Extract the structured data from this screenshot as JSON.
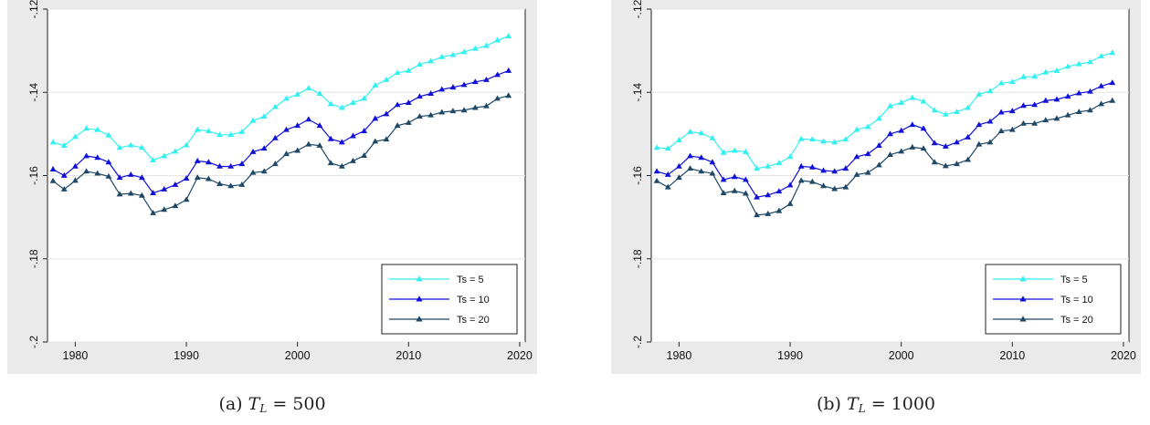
{
  "chart_data": [
    {
      "type": "line",
      "caption_prefix": "(a) ",
      "caption_var": "T",
      "caption_sub": "L",
      "caption_rest": " = 500",
      "x": [
        1978,
        1979,
        1980,
        1981,
        1982,
        1983,
        1984,
        1985,
        1986,
        1987,
        1988,
        1989,
        1990,
        1991,
        1992,
        1993,
        1994,
        1995,
        1996,
        1997,
        1998,
        1999,
        2000,
        2001,
        2002,
        2003,
        2004,
        2005,
        2006,
        2007,
        2008,
        2009,
        2010,
        2011,
        2012,
        2013,
        2014,
        2015,
        2016,
        2017,
        2018,
        2019
      ],
      "series": [
        {
          "name": "Ts = 5",
          "color": "#33f0f0",
          "values": [
            -0.152,
            -0.1528,
            -0.1507,
            -0.1487,
            -0.149,
            -0.1503,
            -0.1533,
            -0.1527,
            -0.1533,
            -0.1563,
            -0.1553,
            -0.1542,
            -0.1527,
            -0.149,
            -0.1493,
            -0.1502,
            -0.1502,
            -0.1495,
            -0.1468,
            -0.1458,
            -0.1435,
            -0.1415,
            -0.1405,
            -0.139,
            -0.1403,
            -0.1428,
            -0.1437,
            -0.1425,
            -0.1415,
            -0.1383,
            -0.137,
            -0.1353,
            -0.1348,
            -0.1333,
            -0.1325,
            -0.1315,
            -0.131,
            -0.1303,
            -0.1295,
            -0.1288,
            -0.1275,
            -0.1265
          ]
        },
        {
          "name": "Ts = 10",
          "color": "#1010d8",
          "values": [
            -0.1585,
            -0.16,
            -0.1578,
            -0.1553,
            -0.1557,
            -0.1568,
            -0.1605,
            -0.1598,
            -0.1605,
            -0.1642,
            -0.1633,
            -0.1622,
            -0.1607,
            -0.1565,
            -0.1568,
            -0.1578,
            -0.1578,
            -0.1572,
            -0.1543,
            -0.1535,
            -0.151,
            -0.149,
            -0.148,
            -0.1465,
            -0.148,
            -0.1512,
            -0.152,
            -0.1505,
            -0.1493,
            -0.1463,
            -0.1452,
            -0.143,
            -0.1425,
            -0.141,
            -0.1403,
            -0.1393,
            -0.1388,
            -0.1382,
            -0.1375,
            -0.137,
            -0.1358,
            -0.1348
          ]
        },
        {
          "name": "Ts = 20",
          "color": "#1f4866",
          "values": [
            -0.1613,
            -0.1633,
            -0.1612,
            -0.159,
            -0.1595,
            -0.1602,
            -0.1645,
            -0.1643,
            -0.1648,
            -0.169,
            -0.1682,
            -0.1673,
            -0.1658,
            -0.1605,
            -0.1608,
            -0.162,
            -0.1625,
            -0.1622,
            -0.1593,
            -0.159,
            -0.1572,
            -0.1548,
            -0.154,
            -0.1525,
            -0.1528,
            -0.157,
            -0.1578,
            -0.1565,
            -0.1552,
            -0.1518,
            -0.1513,
            -0.148,
            -0.1473,
            -0.1458,
            -0.1455,
            -0.1448,
            -0.1445,
            -0.1443,
            -0.1437,
            -0.1433,
            -0.1415,
            -0.1408
          ]
        }
      ],
      "xticks": [
        "1980",
        "1990",
        "2000",
        "2010",
        "2020"
      ],
      "yticks": [
        "-.12",
        "-.14",
        "-.16",
        "-.18",
        "-.2"
      ],
      "xlim": [
        1977.5,
        2020.5
      ],
      "ylim": [
        -0.2,
        -0.12
      ],
      "grid": true,
      "legend_position": "bottom-right"
    },
    {
      "type": "line",
      "caption_prefix": "(b) ",
      "caption_var": "T",
      "caption_sub": "L",
      "caption_rest": " = 1000",
      "x": [
        1978,
        1979,
        1980,
        1981,
        1982,
        1983,
        1984,
        1985,
        1986,
        1987,
        1988,
        1989,
        1990,
        1991,
        1992,
        1993,
        1994,
        1995,
        1996,
        1997,
        1998,
        1999,
        2000,
        2001,
        2002,
        2003,
        2004,
        2005,
        2006,
        2007,
        2008,
        2009,
        2010,
        2011,
        2012,
        2013,
        2014,
        2015,
        2016,
        2017,
        2018,
        2019
      ],
      "series": [
        {
          "name": "Ts = 5",
          "color": "#33f0f0",
          "values": [
            -0.1533,
            -0.1535,
            -0.1515,
            -0.1495,
            -0.1498,
            -0.151,
            -0.1545,
            -0.154,
            -0.1543,
            -0.1583,
            -0.1578,
            -0.157,
            -0.1555,
            -0.1512,
            -0.1513,
            -0.1518,
            -0.152,
            -0.1513,
            -0.149,
            -0.1483,
            -0.1463,
            -0.1433,
            -0.1425,
            -0.1413,
            -0.1422,
            -0.1443,
            -0.1453,
            -0.1447,
            -0.1437,
            -0.1405,
            -0.1397,
            -0.1378,
            -0.1375,
            -0.1363,
            -0.1362,
            -0.1352,
            -0.1348,
            -0.1338,
            -0.1332,
            -0.1327,
            -0.1313,
            -0.1305
          ]
        },
        {
          "name": "Ts = 10",
          "color": "#1010d8",
          "values": [
            -0.159,
            -0.1598,
            -0.1578,
            -0.1553,
            -0.1557,
            -0.1568,
            -0.161,
            -0.1603,
            -0.161,
            -0.1652,
            -0.1647,
            -0.1638,
            -0.1623,
            -0.1578,
            -0.158,
            -0.1588,
            -0.159,
            -0.1583,
            -0.1555,
            -0.1548,
            -0.1528,
            -0.15,
            -0.1492,
            -0.1478,
            -0.1487,
            -0.1522,
            -0.153,
            -0.152,
            -0.1508,
            -0.1478,
            -0.147,
            -0.1448,
            -0.1445,
            -0.1432,
            -0.143,
            -0.142,
            -0.1417,
            -0.141,
            -0.1402,
            -0.1398,
            -0.1385,
            -0.1377
          ]
        },
        {
          "name": "Ts = 20",
          "color": "#1f4866",
          "values": [
            -0.1613,
            -0.1628,
            -0.1605,
            -0.1583,
            -0.159,
            -0.1595,
            -0.1642,
            -0.1637,
            -0.1643,
            -0.1695,
            -0.1692,
            -0.1685,
            -0.1668,
            -0.1612,
            -0.1615,
            -0.1625,
            -0.1632,
            -0.1628,
            -0.1598,
            -0.1593,
            -0.1575,
            -0.155,
            -0.1542,
            -0.1532,
            -0.1535,
            -0.1568,
            -0.1577,
            -0.1572,
            -0.1562,
            -0.1525,
            -0.152,
            -0.1493,
            -0.149,
            -0.1475,
            -0.1475,
            -0.1467,
            -0.1463,
            -0.1455,
            -0.1447,
            -0.1443,
            -0.1428,
            -0.142
          ]
        }
      ],
      "xticks": [
        "1980",
        "1990",
        "2000",
        "2010",
        "2020"
      ],
      "yticks": [
        "-.12",
        "-.14",
        "-.16",
        "-.18",
        "-.2"
      ],
      "xlim": [
        1977.5,
        2020.5
      ],
      "ylim": [
        -0.2,
        -0.12
      ],
      "grid": true,
      "legend_position": "bottom-right"
    }
  ]
}
